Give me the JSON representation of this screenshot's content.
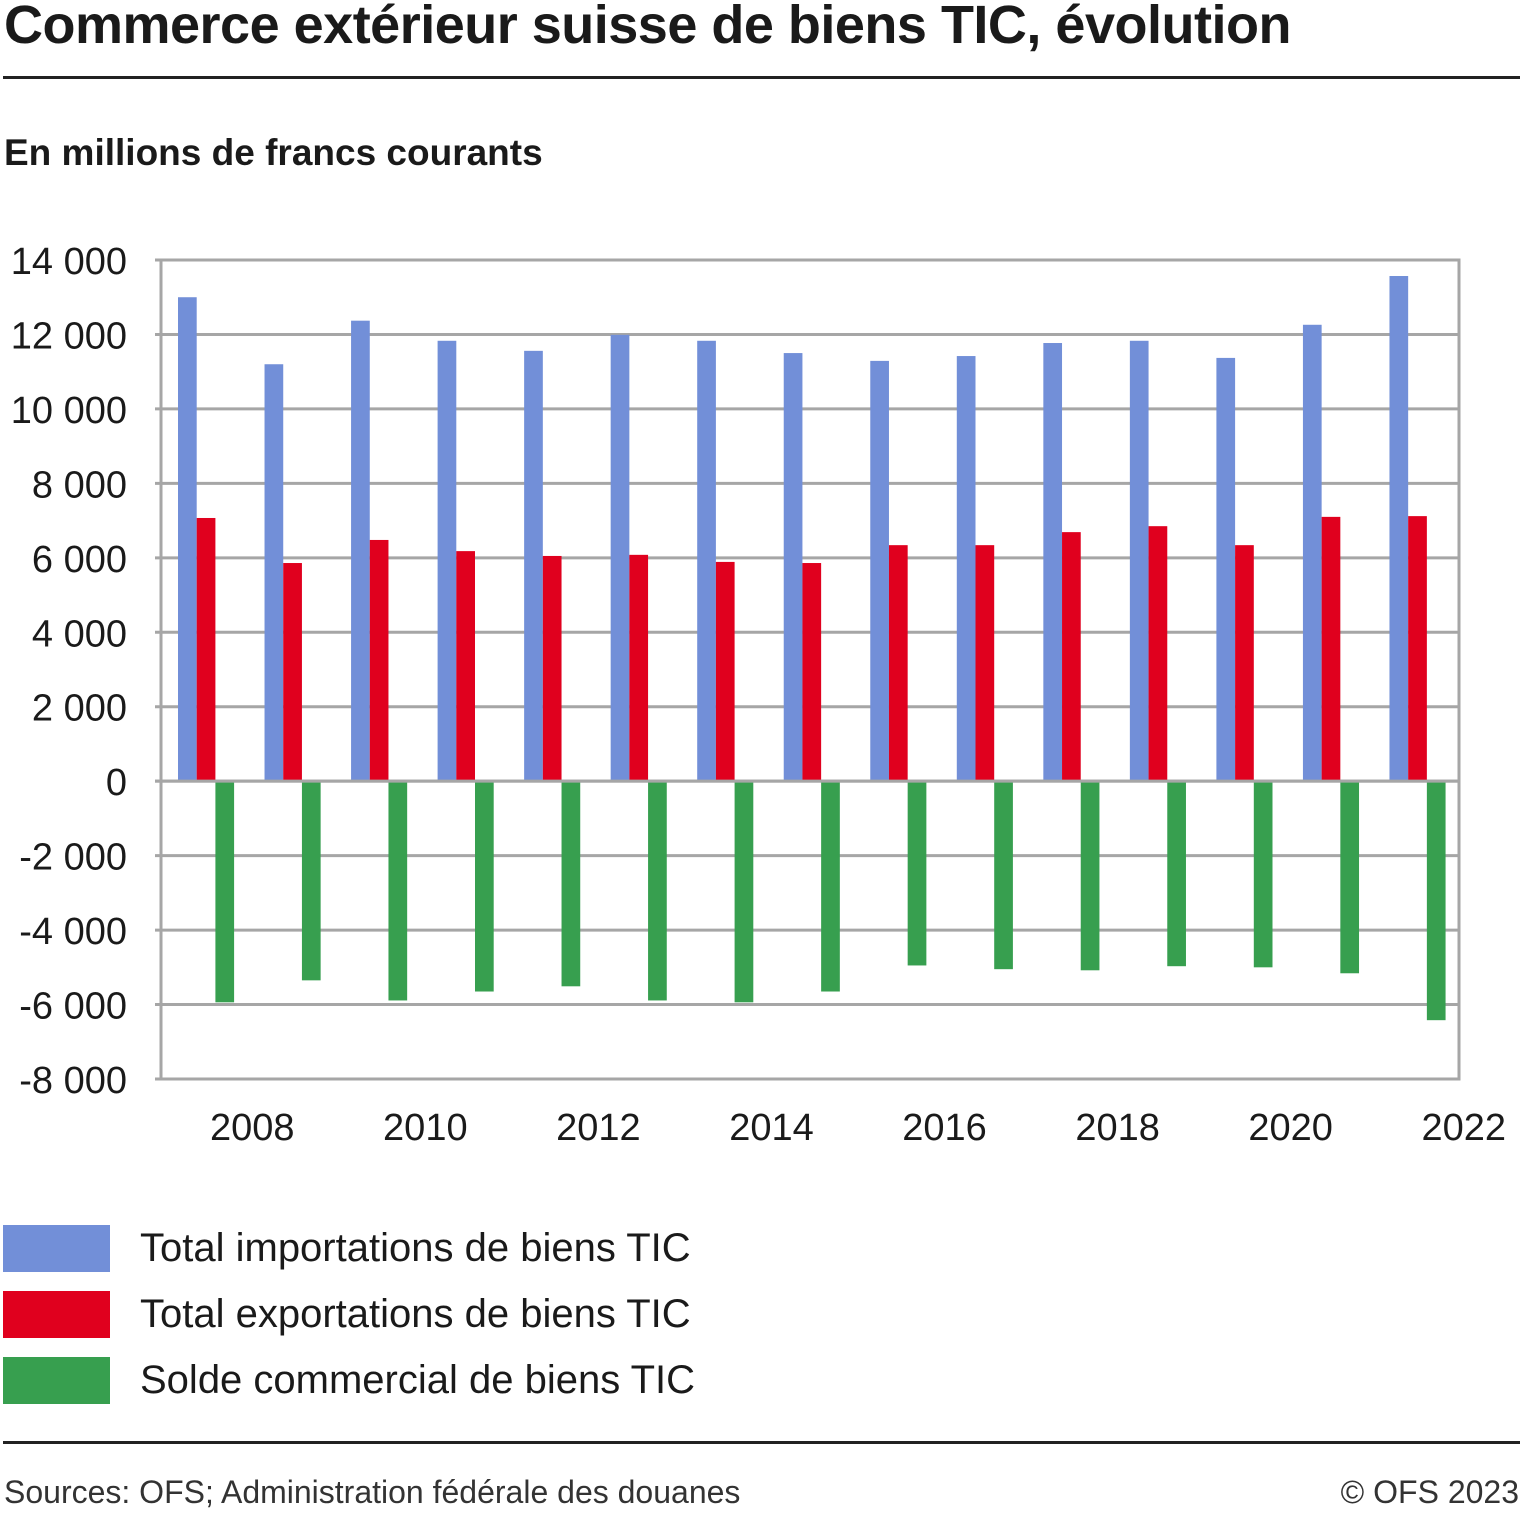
{
  "chart_data": {
    "type": "bar",
    "title": "Commerce extérieur suisse de biens TIC, évolution",
    "subtitle": "En millions de francs courants",
    "categories": [
      "2008",
      "2009",
      "2010",
      "2011",
      "2012",
      "2013",
      "2014",
      "2015",
      "2016",
      "2017",
      "2018",
      "2019",
      "2020",
      "2021",
      "2022"
    ],
    "x_tick_labels": [
      "2008",
      "2010",
      "2012",
      "2014",
      "2016",
      "2018",
      "2020",
      "2022"
    ],
    "y_tick_labels": [
      "14 000",
      "12 000",
      "10 000",
      "8 000",
      "6 000",
      "4 000",
      "2 000",
      "0",
      "-2 000",
      "-4 000",
      "-6 000",
      "-8 000"
    ],
    "ylim": [
      -8000,
      14000
    ],
    "grid": true,
    "legend_position": "bottom",
    "series": [
      {
        "name": "Total importations de biens TIC",
        "color": "#728fd8",
        "values": [
          13000,
          11200,
          12370,
          11830,
          11560,
          11990,
          11830,
          11500,
          11290,
          11420,
          11770,
          11830,
          11370,
          12260,
          13570
        ]
      },
      {
        "name": "Total exportations de biens TIC",
        "color": "#e0001e",
        "values": [
          7070,
          5860,
          6480,
          6180,
          6050,
          6080,
          5890,
          5860,
          6340,
          6340,
          6690,
          6850,
          6340,
          7100,
          7120
        ]
      },
      {
        "name": "Solde commercial de biens TIC",
        "color": "#379f4f",
        "values": [
          -5940,
          -5350,
          -5890,
          -5650,
          -5510,
          -5890,
          -5940,
          -5650,
          -4950,
          -5050,
          -5080,
          -4970,
          -5000,
          -5160,
          -6420
        ]
      }
    ]
  },
  "footer": {
    "source": "Sources: OFS; Administration fédérale des douanes",
    "copyright": "© OFS 2023"
  }
}
